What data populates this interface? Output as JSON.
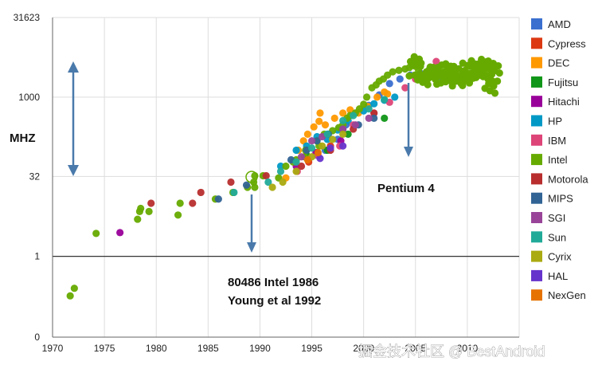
{
  "chart_data": {
    "type": "scatter",
    "ylabel": "MHZ",
    "y_scale": "log",
    "x_ticks": [
      "1970",
      "1975",
      "1980",
      "1985",
      "1990",
      "1995",
      "2000",
      "2005",
      "2010"
    ],
    "y_ticks": [
      {
        "label": "31623",
        "value": 31623
      },
      {
        "label": "1000",
        "value": 1000
      },
      {
        "label": "32",
        "value": 32
      },
      {
        "label": "1",
        "value": 1
      },
      {
        "label": "0",
        "value": 0.03
      }
    ],
    "xlim": [
      1970,
      2015
    ],
    "ylim": [
      0.03,
      31623
    ],
    "grid": true,
    "legend_position": "right",
    "series": [
      {
        "name": "AMD",
        "color": "#3a6fcf",
        "points": [
          [
            1995.5,
            80
          ],
          [
            1996.3,
            100
          ],
          [
            1997.5,
            160
          ],
          [
            1998.3,
            300
          ],
          [
            1999.2,
            500
          ],
          [
            2000.5,
            700
          ],
          [
            2001.5,
            1100
          ],
          [
            2002.5,
            1800
          ],
          [
            2003.5,
            2200
          ],
          [
            2004.5,
            2600
          ],
          [
            2005.5,
            2800
          ],
          [
            2006.5,
            2500
          ],
          [
            2007.5,
            2400
          ],
          [
            2008.5,
            2900
          ]
        ]
      },
      {
        "name": "Cypress",
        "color": "#dc3912",
        "points": [
          [
            1994.7,
            60
          ],
          [
            1995.5,
            90
          ],
          [
            1996.8,
            120
          ]
        ]
      },
      {
        "name": "DEC",
        "color": "#ff9900",
        "points": [
          [
            1992.5,
            30
          ],
          [
            1993.7,
            100
          ],
          [
            1994.2,
            150
          ],
          [
            1994.6,
            200
          ],
          [
            1995.2,
            275
          ],
          [
            1995.7,
            350
          ],
          [
            1995.8,
            500
          ],
          [
            1996.3,
            300
          ],
          [
            1997.2,
            400
          ],
          [
            1998.0,
            500
          ],
          [
            1998.7,
            575
          ],
          [
            1999.5,
            500
          ],
          [
            2000.4,
            667
          ],
          [
            2001.3,
            1000
          ],
          [
            2002.0,
            1250
          ],
          [
            2002.3,
            1150
          ]
        ]
      },
      {
        "name": "Fujitsu",
        "color": "#109618",
        "points": [
          [
            1994.5,
            80
          ],
          [
            1996.5,
            100
          ],
          [
            1998.5,
            200
          ],
          [
            2002.0,
            400
          ]
        ]
      },
      {
        "name": "Hitachi",
        "color": "#990099",
        "points": [
          [
            1976.5,
            2.8
          ],
          [
            1993.5,
            50
          ],
          [
            1995.4,
            90
          ],
          [
            1997.8,
            150
          ]
        ]
      },
      {
        "name": "HP",
        "color": "#0099c6",
        "points": [
          [
            1992.0,
            50
          ],
          [
            1993.5,
            100
          ],
          [
            1994.5,
            120
          ],
          [
            1995.5,
            180
          ],
          [
            1996.5,
            160
          ],
          [
            1997.5,
            240
          ],
          [
            1998.5,
            360
          ],
          [
            2000.0,
            550
          ],
          [
            2001.0,
            750
          ],
          [
            2002.0,
            875
          ],
          [
            2003.0,
            1000
          ]
        ]
      },
      {
        "name": "IBM",
        "color": "#dd4477",
        "points": [
          [
            1993.6,
            40
          ],
          [
            1995.6,
            80
          ],
          [
            1997.7,
            120
          ],
          [
            1999.0,
            300
          ],
          [
            2001.0,
            500
          ],
          [
            2002.5,
            800
          ],
          [
            2004.0,
            1500
          ],
          [
            2005.0,
            2200
          ],
          [
            2007.0,
            4700
          ],
          [
            2008.0,
            3000
          ]
        ]
      },
      {
        "name": "Intel",
        "color": "#66aa00",
        "points": [
          [
            1971.7,
            0.18
          ],
          [
            1972.1,
            0.25
          ],
          [
            1974.2,
            2.7
          ],
          [
            1978.2,
            5
          ],
          [
            1978.4,
            7
          ],
          [
            1978.5,
            8
          ],
          [
            1979.3,
            7
          ],
          [
            1982.1,
            6
          ],
          [
            1982.3,
            10
          ],
          [
            1985.7,
            12
          ],
          [
            1987.4,
            16
          ],
          [
            1988.8,
            20
          ],
          [
            1989.4,
            25
          ],
          [
            1989.5,
            33
          ],
          [
            1989.5,
            20
          ],
          [
            1990.3,
            33
          ],
          [
            1991.8,
            30
          ],
          [
            1992.5,
            50
          ],
          [
            1993.2,
            60
          ],
          [
            1993.5,
            66
          ],
          [
            1994.3,
            75
          ],
          [
            1994.4,
            100
          ],
          [
            1995.5,
            150
          ],
          [
            1995.7,
            120
          ],
          [
            1996.2,
            200
          ],
          [
            1997.0,
            233
          ],
          [
            1997.6,
            266
          ],
          [
            1998.0,
            300
          ],
          [
            1998.4,
            400
          ],
          [
            1998.7,
            450
          ],
          [
            1999.2,
            500
          ],
          [
            1999.6,
            600
          ],
          [
            2000.0,
            733
          ],
          [
            2000.3,
            1000
          ],
          [
            2000.8,
            1500
          ],
          [
            2001.2,
            1700
          ],
          [
            2001.5,
            2000
          ],
          [
            2001.9,
            2200
          ],
          [
            2002.3,
            2600
          ],
          [
            2002.8,
            3000
          ],
          [
            2003.4,
            3200
          ],
          [
            2004.0,
            3400
          ],
          [
            2004.4,
            3600
          ],
          [
            2005.0,
            3800
          ],
          [
            2005.3,
            3200
          ],
          [
            2005.7,
            2600
          ],
          [
            2006.3,
            3000
          ],
          [
            2006.8,
            2400
          ],
          [
            2007.3,
            2660
          ],
          [
            2007.8,
            2800
          ],
          [
            2008.3,
            3000
          ],
          [
            2008.8,
            2000
          ],
          [
            2009.3,
            2500
          ],
          [
            2009.8,
            3200
          ],
          [
            2010.2,
            2800
          ],
          [
            2010.7,
            3100
          ],
          [
            2011.2,
            2600
          ],
          [
            2011.6,
            3400
          ],
          [
            2012.0,
            3000
          ],
          [
            2012.3,
            1800
          ],
          [
            2012.5,
            3500
          ]
        ]
      },
      {
        "name": "Motorola",
        "color": "#b82e2e",
        "points": [
          [
            1979.5,
            10
          ],
          [
            1983.5,
            10
          ],
          [
            1984.3,
            16
          ],
          [
            1987.2,
            25
          ],
          [
            1990.6,
            33
          ],
          [
            1994.0,
            50
          ],
          [
            1996.8,
            100
          ],
          [
            1999.0,
            250
          ],
          [
            2001.0,
            500
          ]
        ]
      },
      {
        "name": "MIPS",
        "color": "#316395",
        "points": [
          [
            1986.0,
            12
          ],
          [
            1988.7,
            22
          ],
          [
            1993.0,
            66
          ],
          [
            1994.5,
            100
          ],
          [
            1995.5,
            150
          ],
          [
            1996.6,
            200
          ],
          [
            1998.0,
            250
          ],
          [
            1999.5,
            300
          ],
          [
            2001.0,
            400
          ]
        ]
      },
      {
        "name": "SGI",
        "color": "#994499",
        "points": [
          [
            1994.0,
            75
          ],
          [
            1995.0,
            150
          ],
          [
            1996.0,
            180
          ],
          [
            1998.0,
            250
          ],
          [
            1999.2,
            300
          ],
          [
            2000.5,
            400
          ]
        ]
      },
      {
        "name": "Sun",
        "color": "#22aa99",
        "points": [
          [
            1987.5,
            16
          ],
          [
            1990.8,
            25
          ],
          [
            1992.0,
            40
          ],
          [
            1993.5,
            60
          ],
          [
            1995.0,
            110
          ],
          [
            1996.5,
            200
          ],
          [
            1998.0,
            360
          ],
          [
            1999.0,
            450
          ],
          [
            2000.5,
            600
          ],
          [
            2002.0,
            900
          ]
        ]
      },
      {
        "name": "Cyrix",
        "color": "#aaaa11",
        "points": [
          [
            1991.2,
            20
          ],
          [
            1992.2,
            25
          ],
          [
            1993.5,
            40
          ],
          [
            1995.0,
            75
          ],
          [
            1996.0,
            120
          ],
          [
            1997.0,
            160
          ],
          [
            1998.0,
            200
          ]
        ]
      },
      {
        "name": "HAL",
        "color": "#6633cc",
        "points": [
          [
            1995.8,
            70
          ],
          [
            1996.8,
            110
          ],
          [
            1998.0,
            120
          ]
        ]
      },
      {
        "name": "NexGen",
        "color": "#e67300",
        "points": [
          [
            1994.6,
            66
          ],
          [
            1995.6,
            90
          ]
        ]
      }
    ],
    "annotations": [
      {
        "text": "Pentium 4"
      },
      {
        "text": "80486 Intel 1986"
      },
      {
        "text": "Young et al 1992"
      }
    ],
    "watermark": "掘金技术社区 @ BestAndroid"
  }
}
